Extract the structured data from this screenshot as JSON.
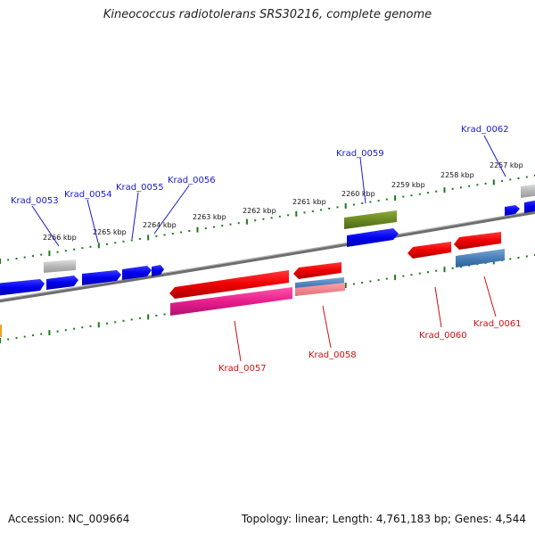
{
  "title": "Kineococcus radiotolerans SRS30216, complete genome",
  "footer": {
    "accession": "Accession: NC_009664",
    "summary": "Topology: linear; Length: 4,761,183 bp; Genes: 4,544"
  },
  "colors": {
    "forward_gene": "#0000ee",
    "reverse_gene": "#ee0000",
    "tick": "#1a7a1a",
    "backbone": "#777777",
    "label_forward": "#1a1acc",
    "label_reverse": "#cc1111"
  },
  "kbp_labels": [
    {
      "text": "2266 kbp"
    },
    {
      "text": "2265 kbp"
    },
    {
      "text": "2264 kbp"
    },
    {
      "text": "2263 kbp"
    },
    {
      "text": "2262 kbp"
    },
    {
      "text": "2261 kbp"
    },
    {
      "text": "2260 kbp"
    },
    {
      "text": "2259 kbp"
    },
    {
      "text": "2258 kbp"
    },
    {
      "text": "2257 kbp"
    }
  ],
  "genes": [
    {
      "name": "Krad_0053",
      "strand": "forward"
    },
    {
      "name": "Krad_0054",
      "strand": "forward"
    },
    {
      "name": "Krad_0055",
      "strand": "forward"
    },
    {
      "name": "Krad_0056",
      "strand": "forward"
    },
    {
      "name": "Krad_0057",
      "strand": "reverse"
    },
    {
      "name": "Krad_0058",
      "strand": "reverse"
    },
    {
      "name": "Krad_0059",
      "strand": "forward"
    },
    {
      "name": "Krad_0060",
      "strand": "reverse"
    },
    {
      "name": "Krad_0061",
      "strand": "reverse"
    },
    {
      "name": "Krad_0062",
      "strand": "forward"
    }
  ]
}
